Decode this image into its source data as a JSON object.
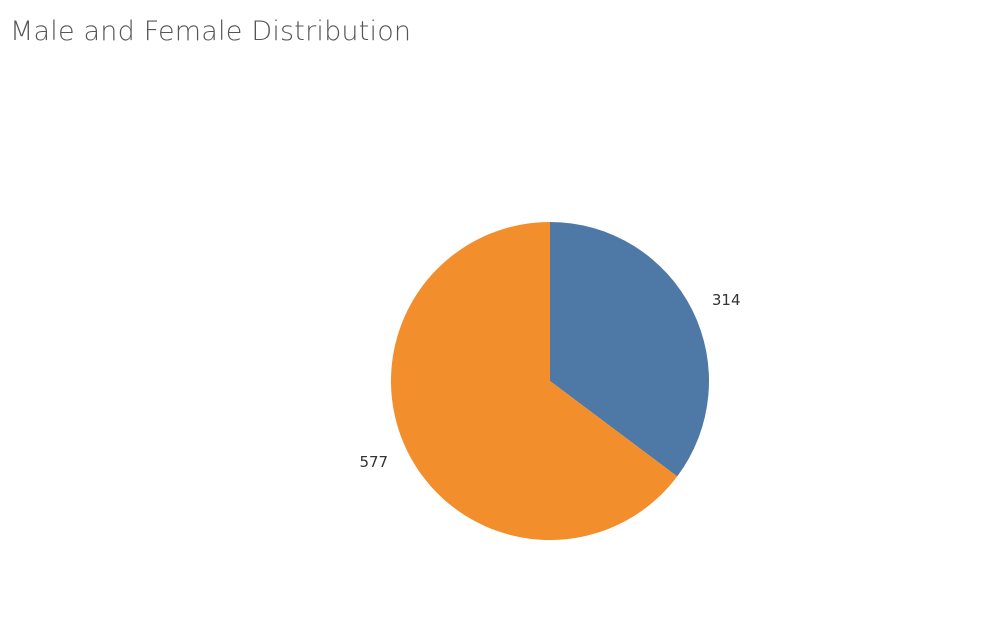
{
  "chart_data": {
    "type": "pie",
    "title": "Male and Female Distribution",
    "slices": [
      {
        "value": 314,
        "label": "314",
        "color": "#4e79a7"
      },
      {
        "value": 577,
        "label": "577",
        "color": "#f28e2b"
      }
    ],
    "start_angle_deg": 0,
    "direction": "clockwise",
    "legend": "none"
  }
}
